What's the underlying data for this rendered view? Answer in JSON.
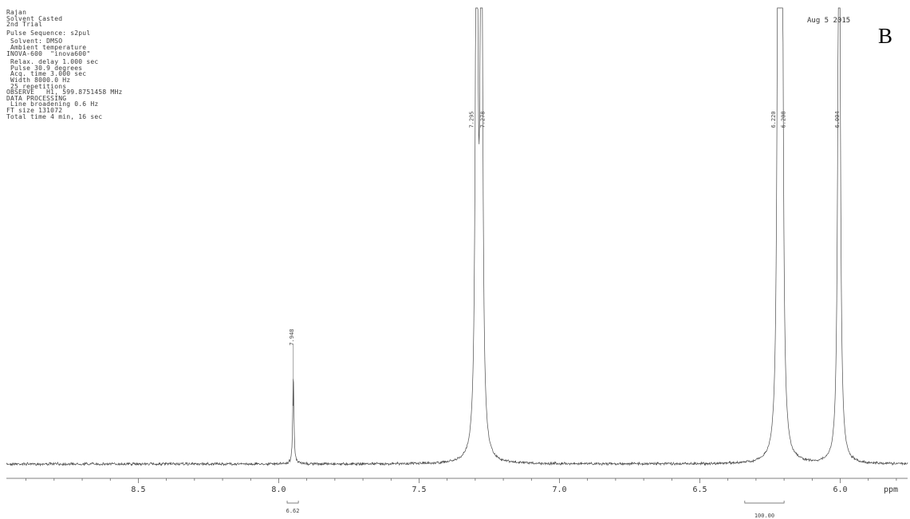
{
  "header": {
    "lines": [
      "Rajan",
      "Solvent Casted",
      "2nd Trial",
      "",
      "Pulse Sequence: s2pul",
      "",
      " Solvent: DMSO",
      " Ambient temperature",
      "INOVA-600  \"inova600\"",
      "",
      " Relax. delay 1.000 sec",
      " Pulse 30.9 degrees",
      " Acq. time 3.000 sec",
      " Width 8000.0 Hz",
      " 25 repetitions",
      "OBSERVE   H1, 599.8751458 MHz",
      "DATA PROCESSING",
      " Line broadening 0.6 Hz",
      "FT size 131072",
      "Total time 4 min, 16 sec"
    ],
    "date": "Aug  5 2015",
    "panel_letter": "B"
  },
  "chart_data": {
    "type": "line",
    "title": "",
    "xlabel": "ppm",
    "ylabel": "",
    "x_reversed": true,
    "xlim": [
      8.97,
      5.76
    ],
    "ylim": [
      0,
      100
    ],
    "grid": false,
    "x_ticks": [
      {
        "value": 8.5,
        "label": "8.5"
      },
      {
        "value": 8.0,
        "label": "8.0"
      },
      {
        "value": 7.5,
        "label": "7.5"
      },
      {
        "value": 7.0,
        "label": "7.0"
      },
      {
        "value": 6.5,
        "label": "6.5"
      },
      {
        "value": 6.0,
        "label": "6.0"
      }
    ],
    "peaks": [
      {
        "shift": 7.948,
        "label": "7.948",
        "height": 12.4
      },
      {
        "shift": 7.295,
        "label": "7.295",
        "height": 100
      },
      {
        "shift": 7.278,
        "label": "7.278",
        "height": 100
      },
      {
        "shift": 6.22,
        "label": "6.220",
        "height": 100
      },
      {
        "shift": 6.208,
        "label": "6.208",
        "height": 100
      },
      {
        "shift": 6.004,
        "label": "6.004",
        "height": 100
      }
    ],
    "integrals": [
      {
        "from": 7.97,
        "to": 7.93,
        "value": "6.62"
      },
      {
        "from": 6.34,
        "to": 6.2,
        "value": "100.00"
      }
    ]
  }
}
